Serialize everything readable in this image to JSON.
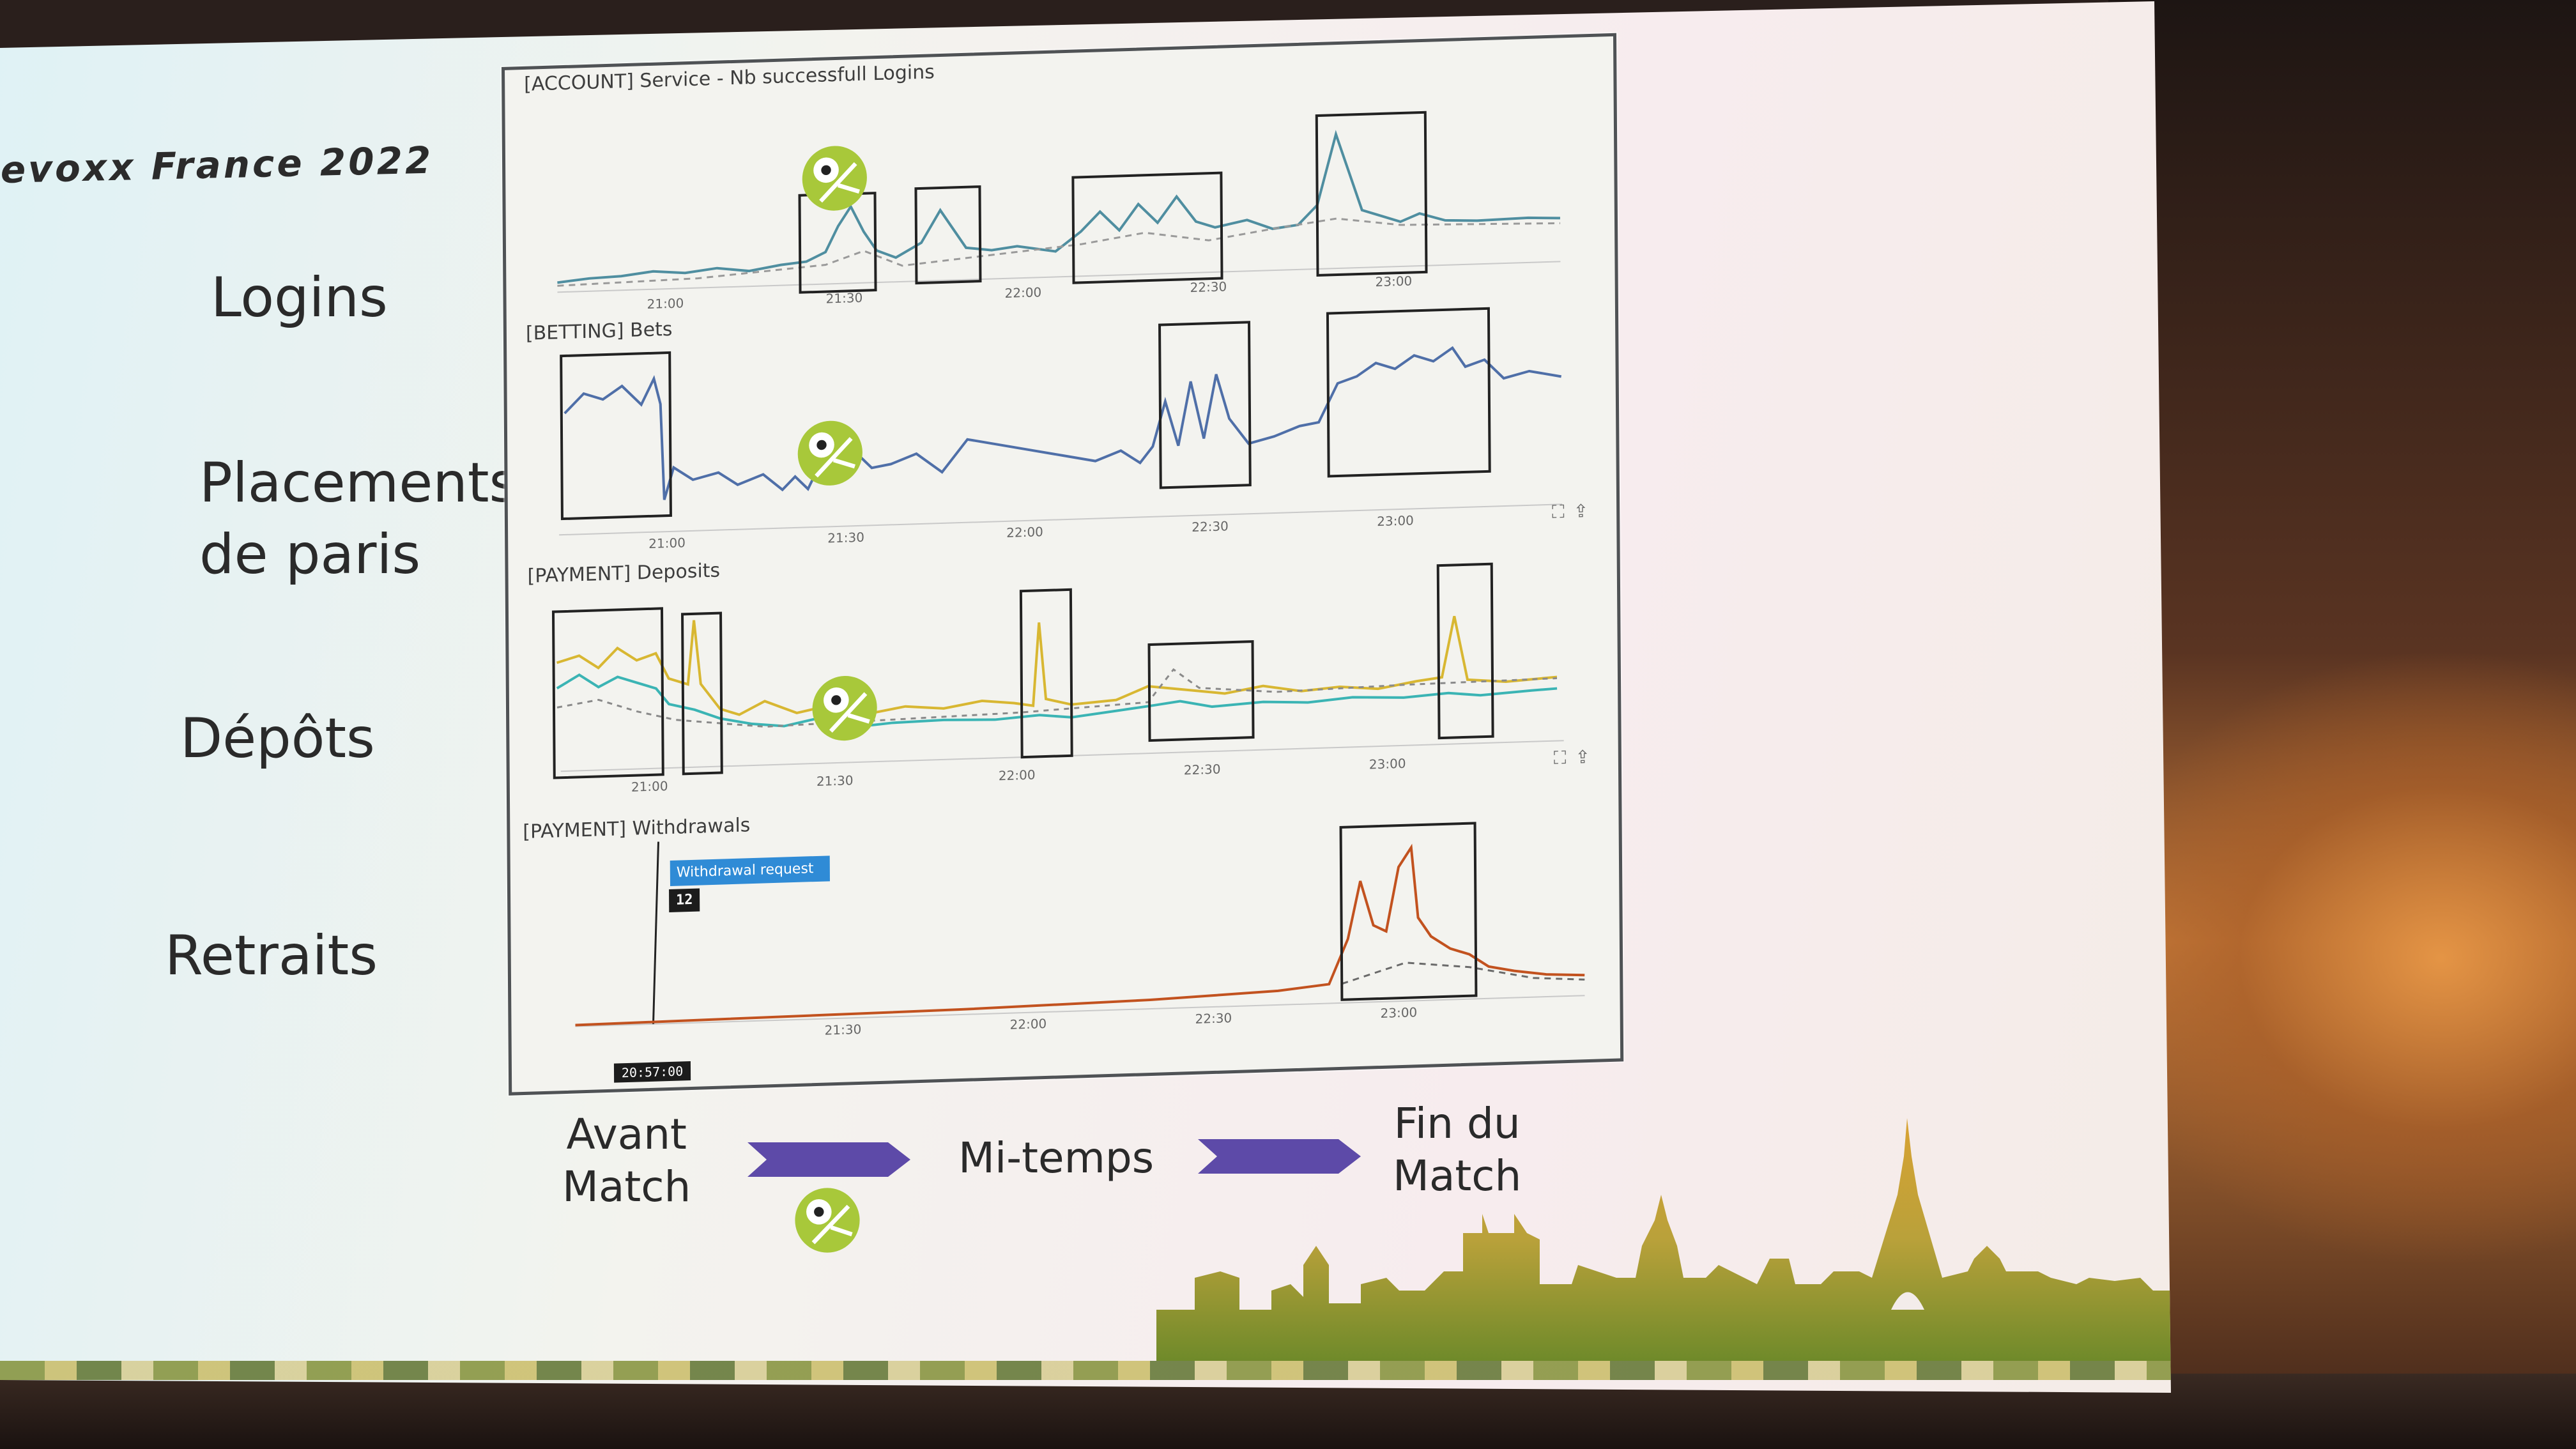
{
  "conference": {
    "title": "evoxx France 2022"
  },
  "rows": [
    {
      "label": "Logins"
    },
    {
      "label": "Placements\nde paris"
    },
    {
      "label": "Dépôts"
    },
    {
      "label": "Retraits"
    }
  ],
  "charts": [
    {
      "title": "[ACCOUNT] Service - Nb successfull Logins",
      "ticks": [
        "21:00",
        "21:30",
        "22:00",
        "22:30",
        "23:00"
      ]
    },
    {
      "title": "[BETTING] Bets",
      "ticks": [
        "21:00",
        "21:30",
        "22:00",
        "22:30",
        "23:00"
      ]
    },
    {
      "title": "[PAYMENT] Deposits",
      "ticks": [
        "21:00",
        "21:30",
        "22:00",
        "22:30",
        "23:00"
      ]
    },
    {
      "title": "[PAYMENT] Withdrawals",
      "ticks": [
        "21:30",
        "22:00",
        "22:30",
        "23:00"
      ]
    }
  ],
  "annotation": {
    "label": "Withdrawal request",
    "count": "12",
    "time": "20:57:00"
  },
  "phases": {
    "before": "Avant\nMatch",
    "half": "Mi-temps",
    "end": "Fin du\nMatch"
  },
  "colors": {
    "teal": "#4f8ea0",
    "yellow": "#d8b732",
    "cyan": "#3bb4b4",
    "orange": "#c2521f",
    "purple": "#5d4aa8",
    "ball_green": "#a8c83a"
  },
  "icons": [
    "soccer-ball-icon",
    "fullscreen-icon",
    "share-icon",
    "arrow-icon"
  ]
}
